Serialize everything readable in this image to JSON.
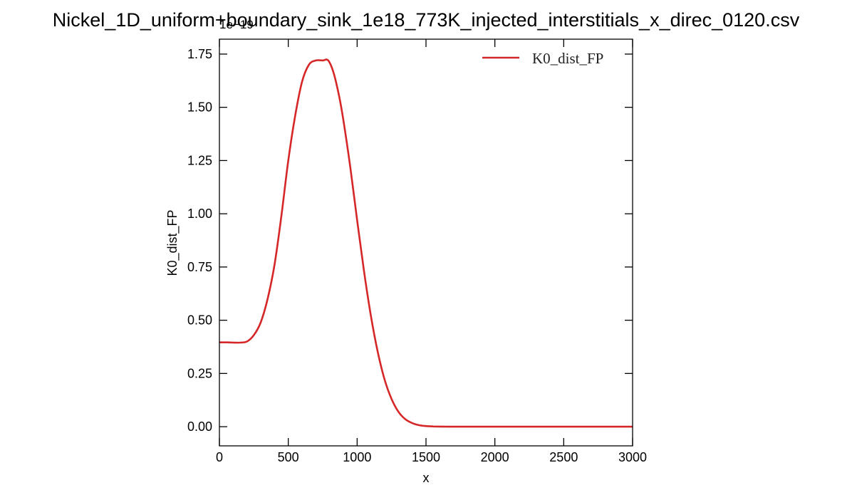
{
  "chart_data": {
    "type": "line",
    "title": "Nickel_1D_uniform+boundary_sink_1e18_773K_injected_interstitials_x_direc_0120.csv",
    "xlabel": "x",
    "ylabel": "K0_dist_FP",
    "y_offset_text": "1e−19",
    "xlim": [
      0,
      3000
    ],
    "ylim": [
      -0.09,
      1.82
    ],
    "x_ticks": [
      0,
      500,
      1000,
      1500,
      2000,
      2500,
      3000
    ],
    "x_tick_labels": [
      "0",
      "500",
      "1000",
      "1500",
      "2000",
      "2500",
      "3000"
    ],
    "y_ticks": [
      0,
      0.25,
      0.5,
      0.75,
      1.0,
      1.25,
      1.5,
      1.75
    ],
    "y_tick_labels": [
      "0.00",
      "0.25",
      "0.50",
      "0.75",
      "1.00",
      "1.25",
      "1.50",
      "1.75"
    ],
    "grid": false,
    "legend_position": "upper right",
    "series": [
      {
        "name": "K0_dist_FP",
        "color": "#d62728",
        "x": [
          0,
          50,
          100,
          150,
          200,
          250,
          300,
          350,
          400,
          450,
          500,
          550,
          600,
          650,
          700,
          750,
          790,
          830,
          870,
          900,
          950,
          1000,
          1050,
          1100,
          1150,
          1200,
          1250,
          1300,
          1350,
          1400,
          1450,
          1500,
          1550,
          1600,
          1700,
          1800,
          2000,
          2500,
          3000
        ],
        "y": [
          0.396,
          0.396,
          0.395,
          0.395,
          0.4,
          0.43,
          0.49,
          0.6,
          0.76,
          0.99,
          1.25,
          1.46,
          1.62,
          1.7,
          1.72,
          1.72,
          1.72,
          1.66,
          1.55,
          1.44,
          1.22,
          0.97,
          0.73,
          0.52,
          0.35,
          0.22,
          0.13,
          0.07,
          0.035,
          0.017,
          0.007,
          0.003,
          0.0012,
          0.0005,
          0.0001,
          0.0,
          0.0,
          0.0,
          0.0
        ]
      }
    ]
  }
}
